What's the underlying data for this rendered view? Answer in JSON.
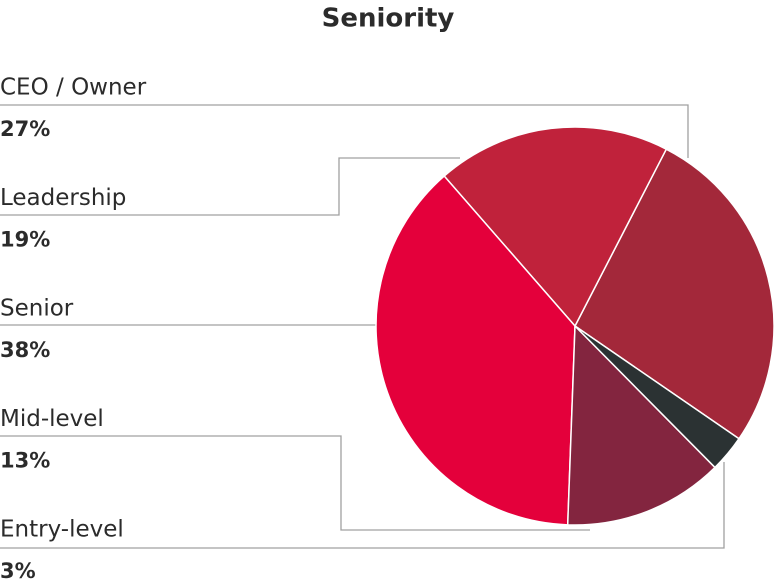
{
  "chart_data": {
    "type": "pie",
    "title": "Seniority",
    "categories": [
      "CEO / Owner",
      "Leadership",
      "Senior",
      "Mid-level",
      "Entry-level"
    ],
    "values": [
      27,
      19,
      38,
      13,
      3
    ],
    "value_labels": [
      "27%",
      "19%",
      "38%",
      "13%",
      "3%"
    ],
    "colors": [
      "#a3283a",
      "#c0223b",
      "#e4003b",
      "#83253f",
      "#2b3233"
    ]
  }
}
